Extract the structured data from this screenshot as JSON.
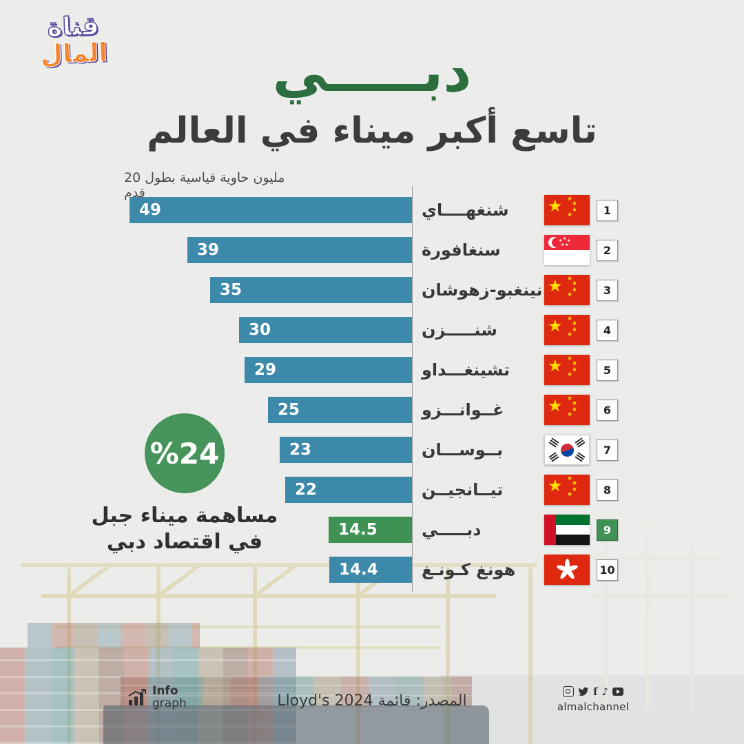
{
  "brand": {
    "line1": "قناة",
    "line2": "المال"
  },
  "header": {
    "title": "دبـــــي",
    "subtitle": "تاسع أكبر ميناء في العالم"
  },
  "chart_data": {
    "type": "bar",
    "orientation": "horizontal-rtl",
    "title": "دبي تاسع أكبر ميناء في العالم",
    "unit_label": "مليون حاوية قياسية بطول 20 قدم",
    "xlim": [
      0,
      49
    ],
    "bar_color": "#3d89a9",
    "highlight_color": "#3f9254",
    "ports": [
      {
        "rank": 1,
        "name": "شنغهــــاي",
        "country": "china",
        "flag": "cn",
        "value": 49,
        "highlight": false
      },
      {
        "rank": 2,
        "name": "سنغافورة",
        "country": "singapore",
        "flag": "sg",
        "value": 39,
        "highlight": false
      },
      {
        "rank": 3,
        "name": "نينغبو-زهوشان",
        "country": "china",
        "flag": "cn",
        "value": 35,
        "highlight": false
      },
      {
        "rank": 4,
        "name": "شنـــــزن",
        "country": "china",
        "flag": "cn",
        "value": 30,
        "highlight": false
      },
      {
        "rank": 5,
        "name": "تشينغـــداو",
        "country": "china",
        "flag": "cn",
        "value": 29,
        "highlight": false
      },
      {
        "rank": 6,
        "name": "غــوانـــزو",
        "country": "china",
        "flag": "cn",
        "value": 25,
        "highlight": false
      },
      {
        "rank": 7,
        "name": "بــوســـان",
        "country": "south-korea",
        "flag": "kr",
        "value": 23,
        "highlight": false
      },
      {
        "rank": 8,
        "name": "تيــانجيــن",
        "country": "china",
        "flag": "cn",
        "value": 22,
        "highlight": false
      },
      {
        "rank": 9,
        "name": "دبـــــي",
        "country": "uae",
        "flag": "ae",
        "value": 14.5,
        "highlight": true
      },
      {
        "rank": 10,
        "name": "هونغ كـونـغ",
        "country": "hong-kong",
        "flag": "hk",
        "value": 14.4,
        "highlight": false
      }
    ]
  },
  "stat": {
    "percent": "%24",
    "caption_line1": "مساهمة ميناء جبل",
    "caption_line2": "في اقتصاد دبي"
  },
  "footer": {
    "infograph_line1": "Info",
    "infograph_line2": "graph",
    "source": "المصدر: قائمة Lloyd's 2024",
    "handle": "almalchannel",
    "social_icons": [
      "instagram",
      "twitter",
      "facebook",
      "tiktok",
      "youtube"
    ]
  }
}
